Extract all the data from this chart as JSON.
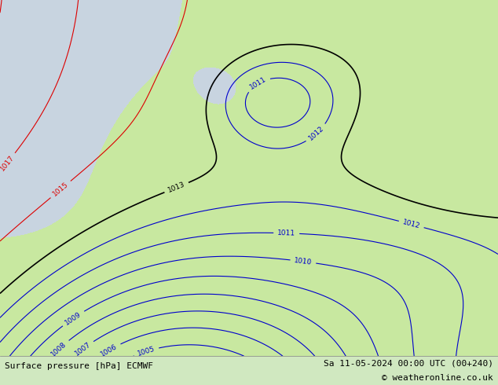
{
  "title_left": "Surface pressure [hPa] ECMWF",
  "title_right": "Sa 11-05-2024 00:00 UTC (00+240)",
  "copyright": "© weatheronline.co.uk",
  "bg_color_land": "#c8e8a0",
  "bg_color_sea": "#c8d4e0",
  "footer_bg": "#d0e8c0",
  "contour_color_red": "#dd0000",
  "contour_color_blue": "#0000cc",
  "contour_color_black": "#000000",
  "label_fontsize": 6.5,
  "footer_fontsize": 8,
  "fig_width": 6.34,
  "fig_height": 4.9
}
